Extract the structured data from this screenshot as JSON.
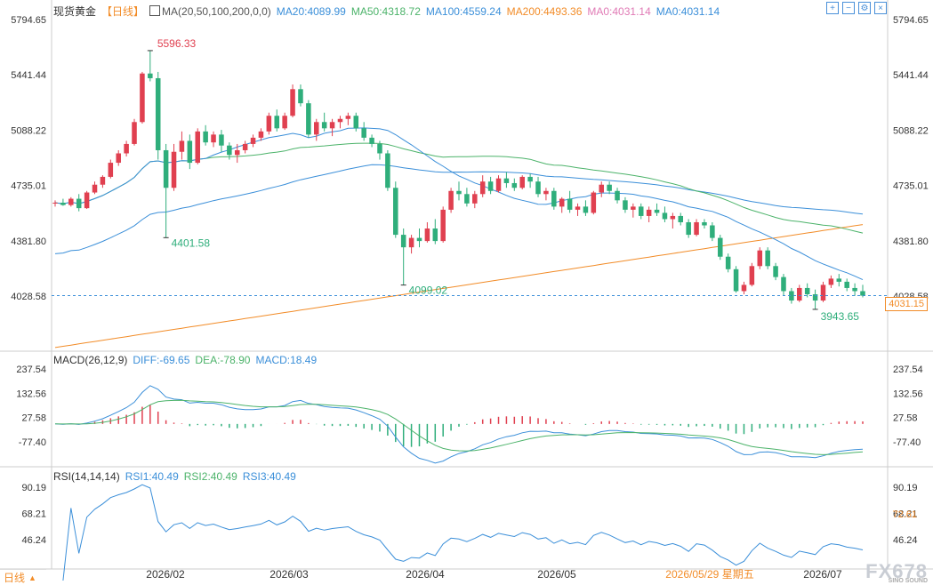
{
  "header": {
    "symbol": "现货黄金",
    "period": "【日线】",
    "ma_label": "MA(20,50,100,200,0,0)",
    "ma20": "MA20:4089.99",
    "ma50": "MA50:4318.72",
    "ma100": "MA100:4559.24",
    "ma200": "MA200:4493.36",
    "ma0a": "MA0:4031.14",
    "ma0b": "MA0:4031.14"
  },
  "macd_header": {
    "label": "MACD(26,12,9)",
    "diff": "DIFF:-69.65",
    "dea": "DEA:-78.90",
    "macd": "MACD:18.49"
  },
  "rsi_header": {
    "label": "RSI(14,14,14)",
    "rsi1": "RSI1:40.49",
    "rsi2": "RSI2:40.49",
    "rsi3": "RSI3:40.49"
  },
  "bottom_tab": {
    "label": "日线",
    "arrow": "▲"
  },
  "watermark": {
    "text": "FX678",
    "sub": "SINO SOUND"
  },
  "price_tag": "4031.15",
  "rsi_tag": "72.61",
  "date_highlight": "2026/05/29 星期五",
  "colors": {
    "up": "#e04050",
    "down": "#2fae7b",
    "ma20": "#3b8fd9",
    "ma50": "#4cb36a",
    "ma100": "#3b8fd9",
    "ma200": "#f28c28",
    "accent": "#f28c28"
  },
  "chart_data": [
    {
      "type": "candlestick",
      "title": "现货黄金 日线",
      "y_ticks": [
        5794.65,
        5441.44,
        5088.22,
        4735.01,
        4381.8,
        4028.58
      ],
      "y_tick_labels": [
        "5794.65",
        "5441.44",
        "5088.22",
        "4735.01",
        "4381.80",
        "4028.58"
      ],
      "ylim": [
        3560,
        5794.65
      ],
      "x_tick_labels": [
        "2026/02",
        "2026/03",
        "2026/04",
        "2026/05",
        "2026/05/29 星期五",
        "2026/07"
      ],
      "annotations": [
        {
          "text": "5596.33",
          "value": 5596.33,
          "kind": "high"
        },
        {
          "text": "4401.58",
          "value": 4401.58,
          "kind": "low"
        },
        {
          "text": "4099.02",
          "value": 4099.02,
          "kind": "low"
        },
        {
          "text": "3943.65",
          "value": 3943.65,
          "kind": "low"
        }
      ],
      "last_price": 4031.15,
      "ohlc": [
        [
          4620,
          4640,
          4600,
          4625
        ],
        [
          4625,
          4650,
          4605,
          4610
        ],
        [
          4610,
          4660,
          4600,
          4650
        ],
        [
          4650,
          4680,
          4570,
          4590
        ],
        [
          4590,
          4700,
          4585,
          4690
        ],
        [
          4690,
          4760,
          4680,
          4740
        ],
        [
          4740,
          4800,
          4720,
          4790
        ],
        [
          4790,
          4900,
          4780,
          4880
        ],
        [
          4880,
          4960,
          4860,
          4940
        ],
        [
          4940,
          5020,
          4920,
          5000
        ],
        [
          5000,
          5160,
          4990,
          5140
        ],
        [
          5140,
          5460,
          5130,
          5450
        ],
        [
          5450,
          5596,
          5400,
          5420
        ],
        [
          5420,
          5460,
          4900,
          4960
        ],
        [
          4960,
          5000,
          4401,
          4720
        ],
        [
          4720,
          5000,
          4700,
          4950
        ],
        [
          4950,
          5080,
          4900,
          5020
        ],
        [
          5020,
          5060,
          4840,
          4880
        ],
        [
          4880,
          5100,
          4870,
          5080
        ],
        [
          5080,
          5120,
          4990,
          5010
        ],
        [
          5010,
          5080,
          4980,
          5060
        ],
        [
          5060,
          5090,
          4950,
          4990
        ],
        [
          4990,
          5010,
          4900,
          4930
        ],
        [
          4930,
          5000,
          4880,
          4960
        ],
        [
          4960,
          5020,
          4940,
          5000
        ],
        [
          5000,
          5060,
          4980,
          5040
        ],
        [
          5040,
          5100,
          5020,
          5080
        ],
        [
          5080,
          5200,
          5060,
          5180
        ],
        [
          5180,
          5220,
          5080,
          5100
        ],
        [
          5100,
          5200,
          5090,
          5180
        ],
        [
          5180,
          5380,
          5170,
          5350
        ],
        [
          5350,
          5380,
          5240,
          5260
        ],
        [
          5260,
          5280,
          5040,
          5060
        ],
        [
          5060,
          5160,
          5020,
          5140
        ],
        [
          5140,
          5200,
          5080,
          5100
        ],
        [
          5100,
          5160,
          5050,
          5140
        ],
        [
          5140,
          5180,
          5100,
          5160
        ],
        [
          5160,
          5200,
          5120,
          5180
        ],
        [
          5180,
          5200,
          5080,
          5100
        ],
        [
          5100,
          5140,
          5020,
          5040
        ],
        [
          5040,
          5060,
          4980,
          5000
        ],
        [
          5000,
          5020,
          4900,
          4940
        ],
        [
          4940,
          4960,
          4700,
          4720
        ],
        [
          4720,
          4760,
          4400,
          4420
        ],
        [
          4420,
          4460,
          4099,
          4340
        ],
        [
          4340,
          4420,
          4300,
          4400
        ],
        [
          4400,
          4460,
          4340,
          4380
        ],
        [
          4380,
          4500,
          4370,
          4460
        ],
        [
          4460,
          4520,
          4360,
          4380
        ],
        [
          4380,
          4600,
          4370,
          4580
        ],
        [
          4580,
          4720,
          4560,
          4700
        ],
        [
          4700,
          4760,
          4640,
          4680
        ],
        [
          4680,
          4720,
          4600,
          4620
        ],
        [
          4620,
          4700,
          4590,
          4680
        ],
        [
          4680,
          4800,
          4660,
          4760
        ],
        [
          4760,
          4790,
          4680,
          4700
        ],
        [
          4700,
          4800,
          4690,
          4780
        ],
        [
          4780,
          4820,
          4720,
          4750
        ],
        [
          4750,
          4780,
          4700,
          4720
        ],
        [
          4720,
          4800,
          4710,
          4790
        ],
        [
          4790,
          4810,
          4720,
          4760
        ],
        [
          4760,
          4790,
          4660,
          4680
        ],
        [
          4680,
          4720,
          4640,
          4700
        ],
        [
          4700,
          4720,
          4580,
          4600
        ],
        [
          4600,
          4660,
          4560,
          4650
        ],
        [
          4650,
          4700,
          4560,
          4580
        ],
        [
          4580,
          4620,
          4540,
          4600
        ],
        [
          4600,
          4640,
          4540,
          4560
        ],
        [
          4560,
          4700,
          4550,
          4690
        ],
        [
          4690,
          4760,
          4660,
          4740
        ],
        [
          4740,
          4760,
          4680,
          4700
        ],
        [
          4700,
          4720,
          4620,
          4640
        ],
        [
          4640,
          4660,
          4560,
          4580
        ],
        [
          4580,
          4620,
          4530,
          4600
        ],
        [
          4600,
          4620,
          4520,
          4540
        ],
        [
          4540,
          4600,
          4500,
          4580
        ],
        [
          4580,
          4620,
          4540,
          4560
        ],
        [
          4560,
          4600,
          4500,
          4520
        ],
        [
          4520,
          4560,
          4460,
          4540
        ],
        [
          4540,
          4560,
          4480,
          4500
        ],
        [
          4500,
          4520,
          4400,
          4420
        ],
        [
          4420,
          4520,
          4410,
          4500
        ],
        [
          4500,
          4520,
          4460,
          4480
        ],
        [
          4480,
          4500,
          4380,
          4400
        ],
        [
          4400,
          4420,
          4260,
          4280
        ],
        [
          4280,
          4300,
          4180,
          4200
        ],
        [
          4200,
          4220,
          4050,
          4060
        ],
        [
          4060,
          4120,
          4040,
          4100
        ],
        [
          4100,
          4240,
          4090,
          4220
        ],
        [
          4220,
          4340,
          4200,
          4320
        ],
        [
          4320,
          4340,
          4200,
          4220
        ],
        [
          4220,
          4240,
          4130,
          4150
        ],
        [
          4150,
          4170,
          4030,
          4060
        ],
        [
          4060,
          4080,
          3980,
          4000
        ],
        [
          4000,
          4100,
          3990,
          4080
        ],
        [
          4080,
          4110,
          4020,
          4040
        ],
        [
          4040,
          4070,
          3943,
          4000
        ],
        [
          4000,
          4120,
          3990,
          4100
        ],
        [
          4100,
          4160,
          4080,
          4140
        ],
        [
          4140,
          4170,
          4090,
          4120
        ],
        [
          4120,
          4140,
          4060,
          4080
        ],
        [
          4080,
          4110,
          4030,
          4060
        ],
        [
          4060,
          4100,
          4020,
          4031
        ]
      ]
    },
    {
      "type": "macd",
      "y_tick_labels": [
        "237.54",
        "132.56",
        "27.58",
        "-77.40"
      ],
      "ylim": [
        -200,
        260
      ],
      "diff": -69.65,
      "dea": -78.9,
      "macd": 18.49
    },
    {
      "type": "rsi",
      "y_tick_labels": [
        "90.19",
        "68.21",
        "46.24"
      ],
      "ylim": [
        10,
        95
      ],
      "rsi": 40.49
    }
  ]
}
